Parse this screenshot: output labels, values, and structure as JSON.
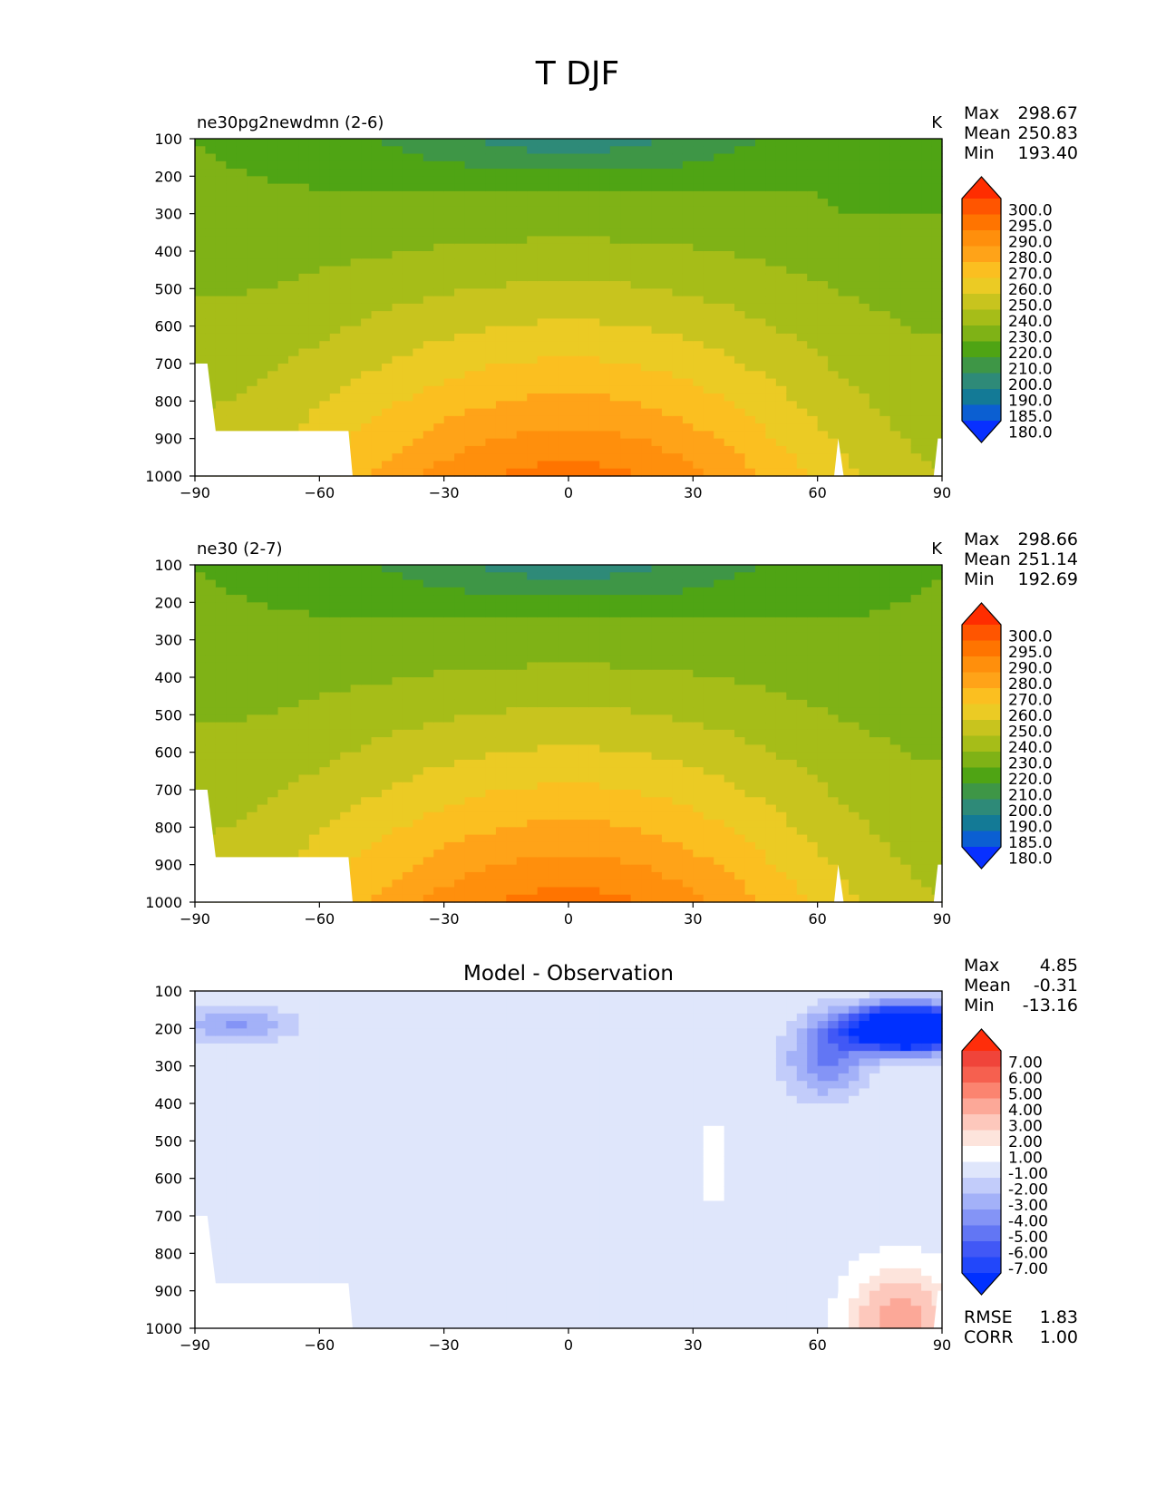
{
  "title": "T DJF",
  "chart_data": [
    {
      "type": "contour",
      "panel_title_left": "ne30pg2newdmn (2-6)",
      "units": "K",
      "x_ticks": [
        "−90",
        "−60",
        "−30",
        "0",
        "30",
        "60",
        "90"
      ],
      "xlim": [
        -90,
        90
      ],
      "y_ticks": [
        "100",
        "200",
        "300",
        "400",
        "500",
        "600",
        "700",
        "800",
        "900",
        "1000"
      ],
      "ylim": [
        100,
        1000
      ],
      "stats": {
        "max_label": "Max",
        "max": "298.67",
        "mean_label": "Mean",
        "mean": "250.83",
        "min_label": "Min",
        "min": "193.40"
      },
      "colorbar": {
        "labels": [
          "300.0",
          "295.0",
          "290.0",
          "280.0",
          "270.0",
          "260.0",
          "250.0",
          "240.0",
          "230.0",
          "220.0",
          "210.0",
          "200.0",
          "190.0",
          "185.0",
          "180.0"
        ],
        "colors": [
          "#ff2d00",
          "#ff5500",
          "#ff7400",
          "#ff8f0c",
          "#ffa318",
          "#fbbf20",
          "#ebcb24",
          "#c8c41e",
          "#a6bd18",
          "#7fb216",
          "#4fa414",
          "#3e9646",
          "#2e8a78",
          "#137a96",
          "#0b5fd2",
          "#0830ff"
        ],
        "extend": "both"
      },
      "thresholds": [
        180,
        185,
        190,
        200,
        210,
        220,
        230,
        240,
        250,
        260,
        270,
        280,
        290,
        295,
        300
      ],
      "field_description": "zonal-mean temperature, warm near surface in tropics, cold aloft"
    },
    {
      "type": "contour",
      "panel_title_left": "ne30 (2-7)",
      "units": "K",
      "x_ticks": [
        "−90",
        "−60",
        "−30",
        "0",
        "30",
        "60",
        "90"
      ],
      "xlim": [
        -90,
        90
      ],
      "y_ticks": [
        "100",
        "200",
        "300",
        "400",
        "500",
        "600",
        "700",
        "800",
        "900",
        "1000"
      ],
      "ylim": [
        100,
        1000
      ],
      "stats": {
        "max_label": "Max",
        "max": "298.66",
        "mean_label": "Mean",
        "mean": "251.14",
        "min_label": "Min",
        "min": "192.69"
      },
      "colorbar": {
        "labels": [
          "300.0",
          "295.0",
          "290.0",
          "280.0",
          "270.0",
          "260.0",
          "250.0",
          "240.0",
          "230.0",
          "220.0",
          "210.0",
          "200.0",
          "190.0",
          "185.0",
          "180.0"
        ],
        "colors": [
          "#ff2d00",
          "#ff5500",
          "#ff7400",
          "#ff8f0c",
          "#ffa318",
          "#fbbf20",
          "#ebcb24",
          "#c8c41e",
          "#a6bd18",
          "#7fb216",
          "#4fa414",
          "#3e9646",
          "#2e8a78",
          "#137a96",
          "#0b5fd2",
          "#0830ff"
        ],
        "extend": "both"
      },
      "thresholds": [
        180,
        185,
        190,
        200,
        210,
        220,
        230,
        240,
        250,
        260,
        270,
        280,
        290,
        295,
        300
      ]
    },
    {
      "type": "contour",
      "panel_title_center": "Model - Observation",
      "x_ticks": [
        "−90",
        "−60",
        "−30",
        "0",
        "30",
        "60",
        "90"
      ],
      "xlim": [
        -90,
        90
      ],
      "y_ticks": [
        "100",
        "200",
        "300",
        "400",
        "500",
        "600",
        "700",
        "800",
        "900",
        "1000"
      ],
      "ylim": [
        100,
        1000
      ],
      "stats": {
        "max_label": "Max",
        "max": "4.85",
        "mean_label": "Mean",
        "mean": "-0.31",
        "min_label": "Min",
        "min": "-13.16"
      },
      "colorbar": {
        "labels": [
          "7.00",
          "6.00",
          "5.00",
          "4.00",
          "3.00",
          "2.00",
          "1.00",
          "-1.00",
          "-2.00",
          "-3.00",
          "-4.00",
          "-5.00",
          "-6.00",
          "-7.00"
        ],
        "colors": [
          "#ff2d0a",
          "#f0443a",
          "#f6604f",
          "#fb8470",
          "#fca898",
          "#fdc8bc",
          "#fde4dc",
          "#ffffff",
          "#dfe6fb",
          "#c2ccfa",
          "#a3b1f8",
          "#8494f6",
          "#6276f4",
          "#4158f6",
          "#2247fa",
          "#0030ff"
        ],
        "extend": "both"
      },
      "error_stats": {
        "rmse_label": "RMSE",
        "rmse": "1.83",
        "corr_label": "CORR",
        "corr": "1.00"
      }
    }
  ]
}
